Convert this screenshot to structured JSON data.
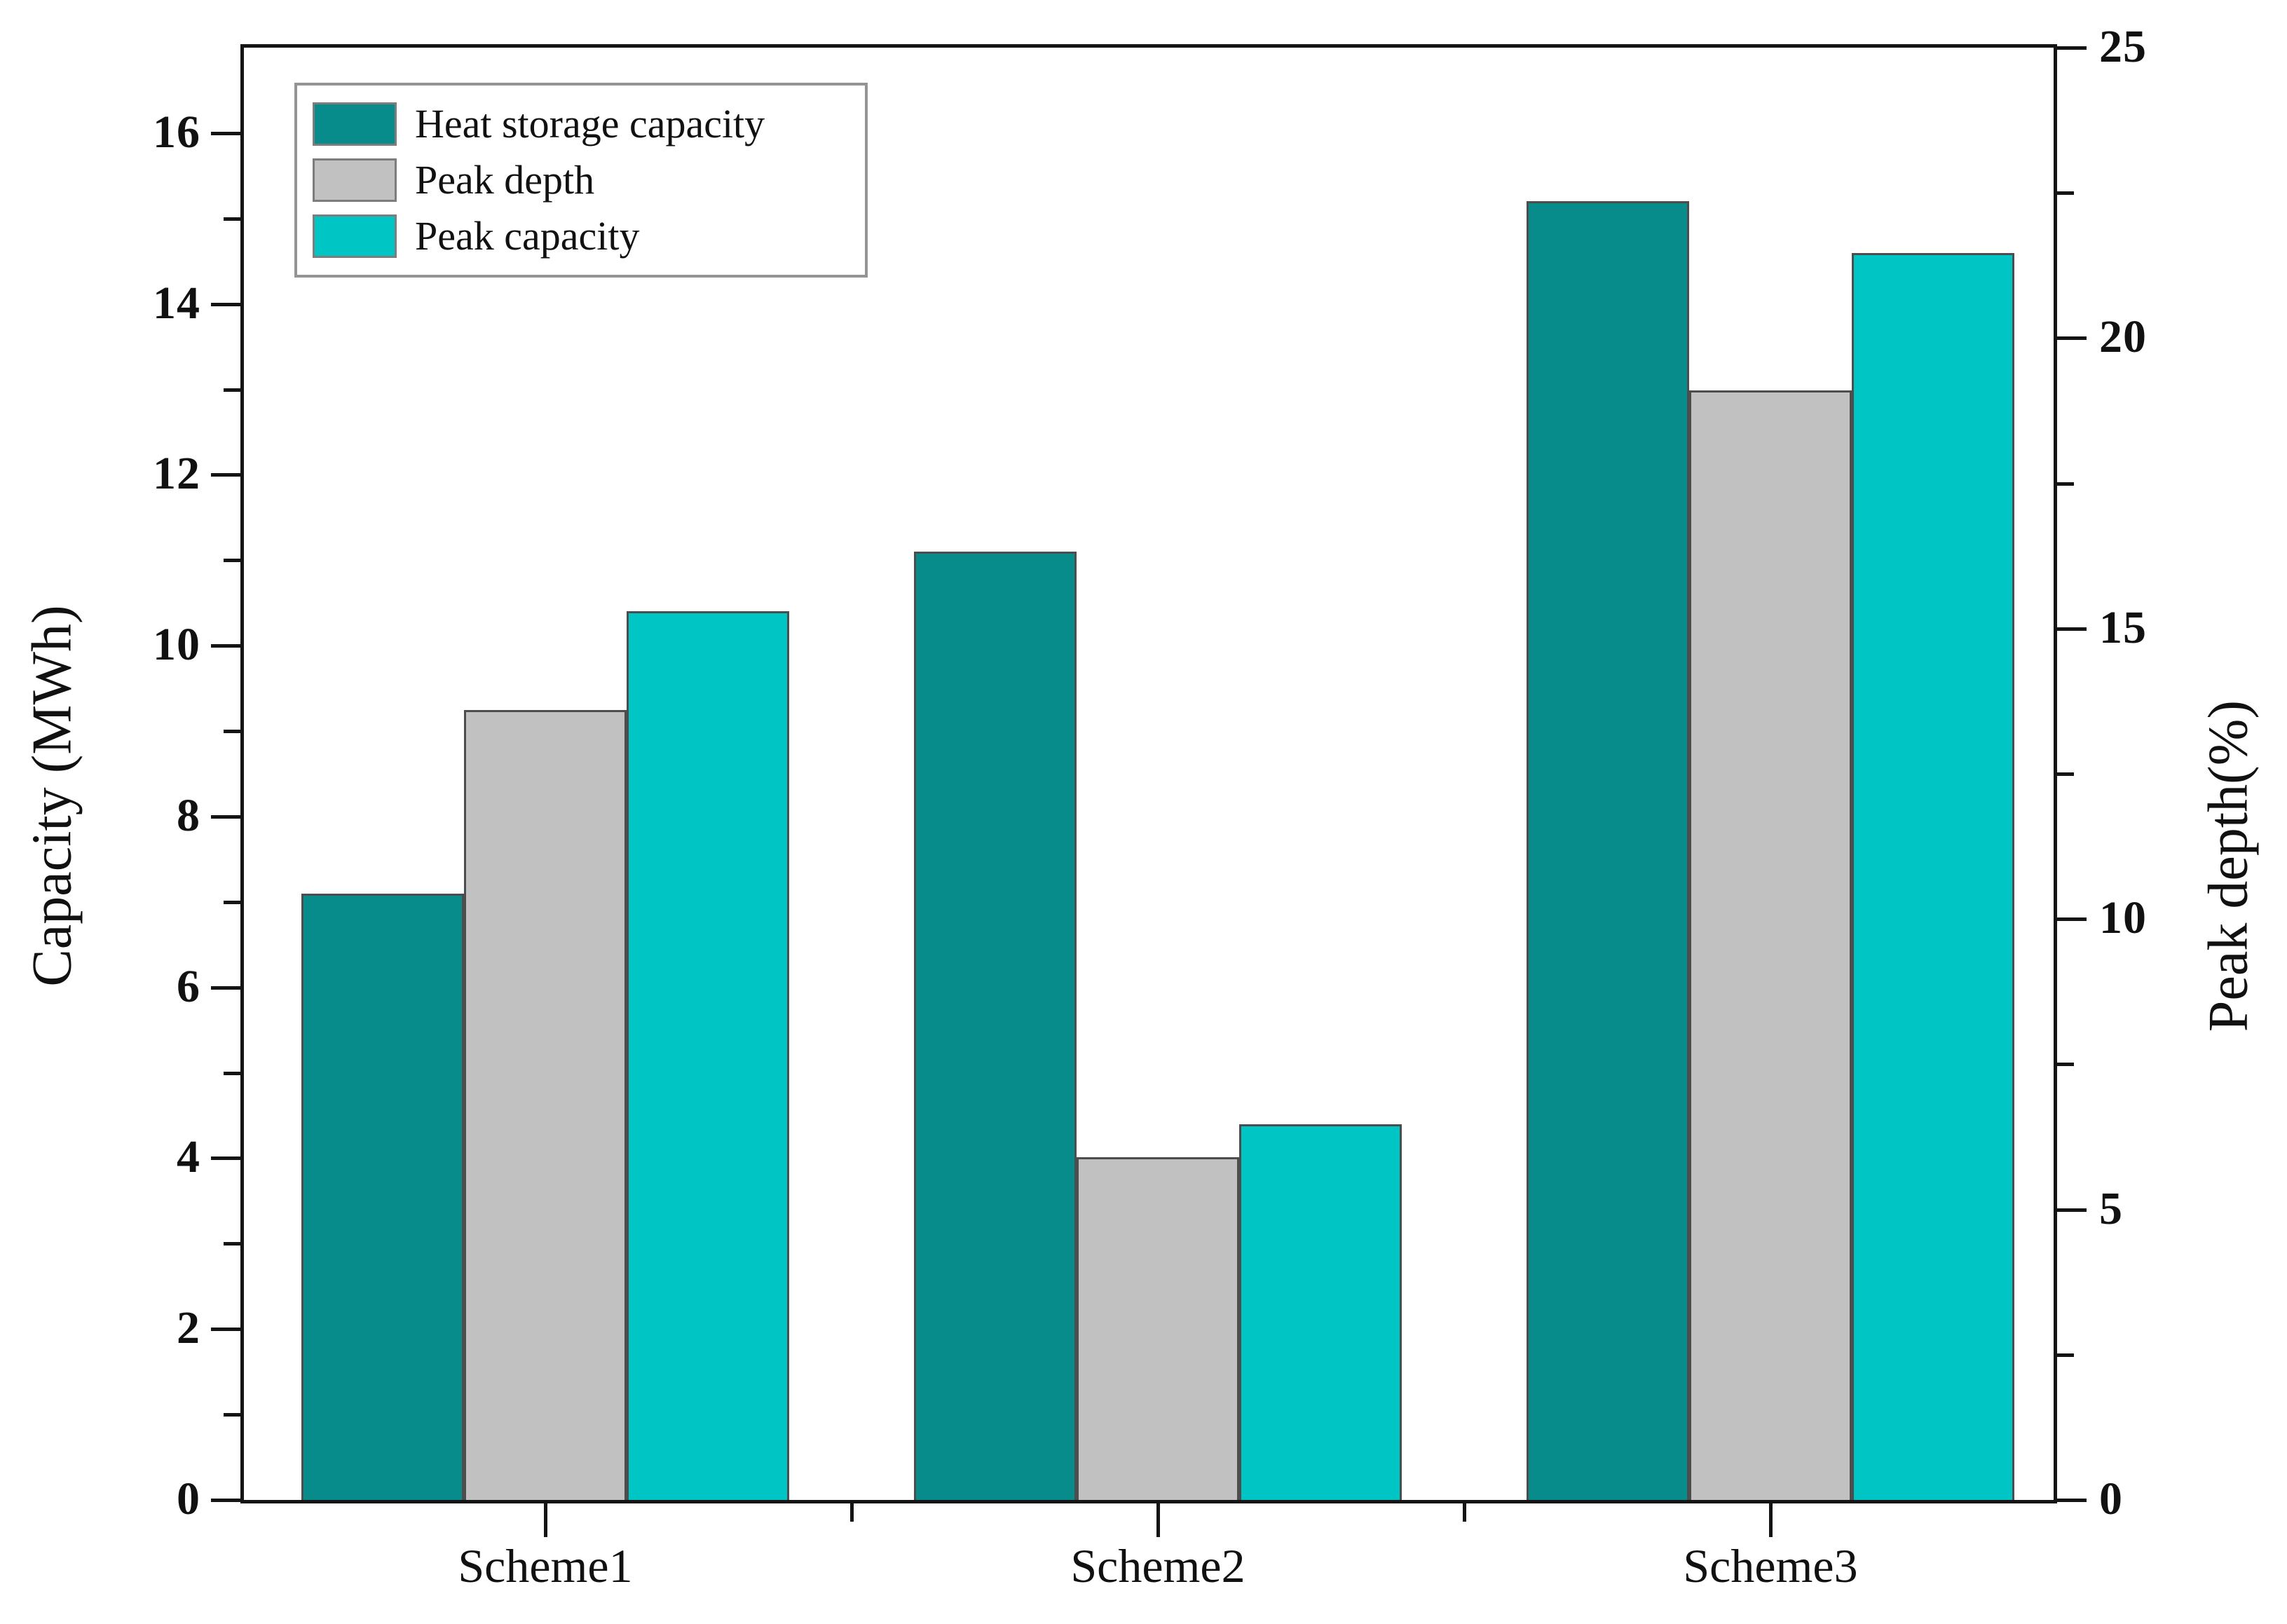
{
  "chart_data": {
    "type": "bar",
    "title": "",
    "categories": [
      "Scheme1",
      "Scheme2",
      "Scheme3"
    ],
    "series": [
      {
        "name": "Heat storage capacity",
        "axis": "left",
        "unit": "MWh",
        "color": "#088b8b",
        "values": [
          7.1,
          11.1,
          15.2
        ]
      },
      {
        "name": "Peak depth",
        "axis": "right",
        "unit": "%",
        "color": "#c1c1c1",
        "values": [
          13.6,
          5.9,
          19.1
        ]
      },
      {
        "name": "Peak capacity",
        "axis": "left",
        "unit": "MWh",
        "color": "#00c5c5",
        "values": [
          10.4,
          4.4,
          14.6
        ]
      }
    ],
    "left_axis": {
      "label": "Capacity (MWh)",
      "min": 0,
      "max": 17,
      "major_ticks": [
        0,
        2,
        4,
        6,
        8,
        10,
        12,
        14,
        16
      ],
      "minor_step": 1
    },
    "right_axis": {
      "label": "Peak depth(%)",
      "min": 0,
      "max": 25,
      "major_ticks": [
        0,
        5,
        10,
        15,
        20,
        25
      ],
      "minor_step": 2.5
    },
    "legend_position": "top-left",
    "grid": false
  },
  "colors": {
    "frame": "#141414",
    "bar_outline": "#4d4d4d",
    "legend_border": "#949494",
    "background": "#ffffff"
  }
}
